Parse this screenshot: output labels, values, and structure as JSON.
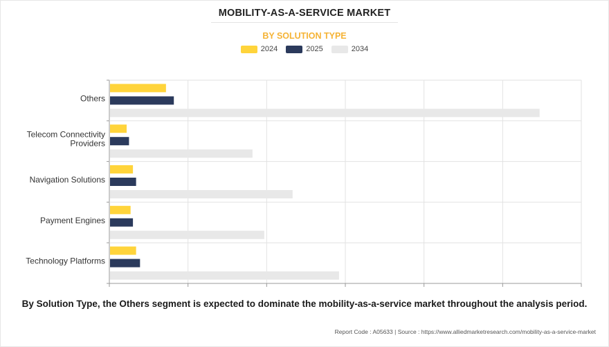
{
  "title": "MOBILITY-AS-A-SERVICE MARKET",
  "subtitle": "BY SOLUTION TYPE",
  "caption": "By Solution Type, the Others segment is expected to dominate the mobility-as-a-service market throughout the analysis period.",
  "footer": {
    "report_code": "Report Code : A05633",
    "separator": "|",
    "source": "Source : https://www.alliedmarketresearch.com/mobility-as-a-service-market"
  },
  "chart_data": {
    "type": "bar",
    "orientation": "horizontal",
    "title": "MOBILITY-AS-A-SERVICE MARKET",
    "subtitle": "BY SOLUTION TYPE",
    "categories": [
      [
        "Others"
      ],
      [
        "Telecom Connectivity",
        "Providers"
      ],
      [
        "Navigation Solutions"
      ],
      [
        "Payment Engines"
      ],
      [
        "Technology Platforms"
      ]
    ],
    "series": [
      {
        "name": "2024",
        "color": "#ffd43b",
        "values": [
          7.2,
          2.2,
          3.0,
          2.7,
          3.4
        ]
      },
      {
        "name": "2025",
        "color": "#2b3a5c",
        "values": [
          8.2,
          2.5,
          3.4,
          3.0,
          3.9
        ]
      },
      {
        "name": "2034",
        "color": "#e8e8e8",
        "values": [
          54.7,
          18.2,
          23.3,
          19.7,
          29.2
        ]
      }
    ],
    "xlim": [
      0,
      60
    ],
    "x_ticks": [
      0,
      10,
      20,
      30,
      40,
      50,
      60
    ],
    "tick_labels_visible": false,
    "grid": true,
    "legend": "top-center"
  }
}
